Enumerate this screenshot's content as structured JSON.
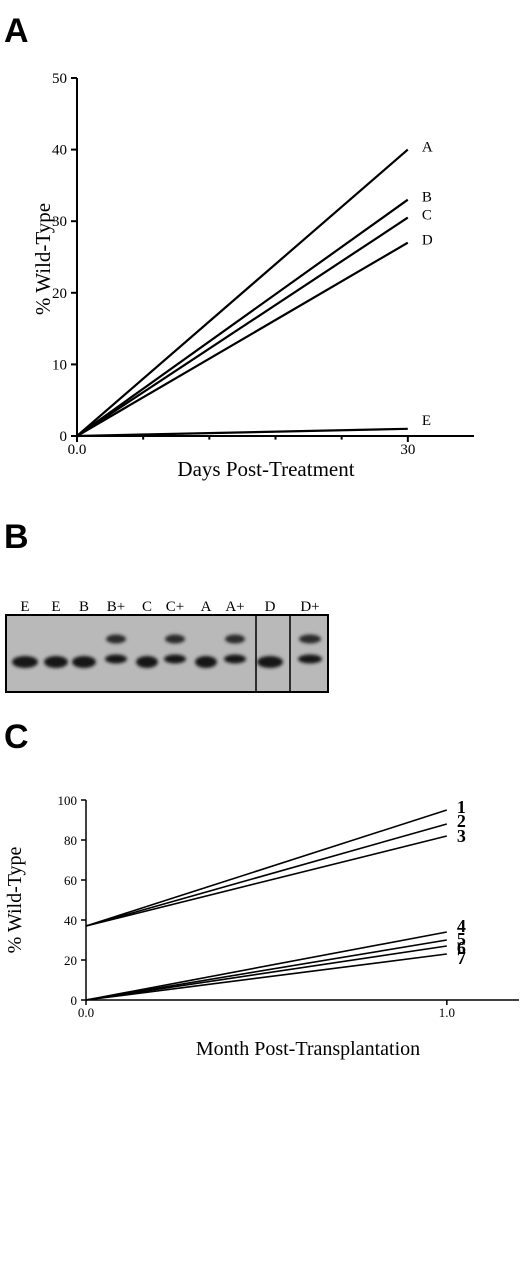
{
  "figure": {
    "panel_letters": [
      "A",
      "B",
      "C"
    ]
  },
  "chart_data": [
    {
      "panel": "A",
      "type": "line",
      "xlabel": "Days Post-Treatment",
      "ylabel": "% Wild-Type",
      "xlim": [
        0,
        36
      ],
      "ylim": [
        0,
        50
      ],
      "x_ticks": [
        0,
        30
      ],
      "x_tick_labels": [
        "0.0",
        "30"
      ],
      "y_ticks": [
        0,
        10,
        20,
        30,
        40,
        50
      ],
      "y_tick_labels": [
        "0",
        "10",
        "20",
        "30",
        "40",
        "50"
      ],
      "series": [
        {
          "name": "A",
          "x": [
            0,
            30
          ],
          "y": [
            0,
            40
          ]
        },
        {
          "name": "B",
          "x": [
            0,
            30
          ],
          "y": [
            0,
            33
          ]
        },
        {
          "name": "C",
          "x": [
            0,
            30
          ],
          "y": [
            0,
            30.5
          ]
        },
        {
          "name": "D",
          "x": [
            0,
            30
          ],
          "y": [
            0,
            27
          ]
        },
        {
          "name": "E",
          "x": [
            0,
            30
          ],
          "y": [
            0,
            1
          ]
        }
      ]
    },
    {
      "panel": "C",
      "type": "line",
      "xlabel": "Month Post-Transplantation",
      "ylabel": "% Wild-Type",
      "xlim": [
        0,
        1.2
      ],
      "ylim": [
        0,
        100
      ],
      "x_ticks": [
        0,
        1
      ],
      "x_tick_labels": [
        "0.0",
        "1.0"
      ],
      "y_ticks": [
        0,
        20,
        40,
        60,
        80,
        100
      ],
      "y_tick_labels": [
        "0",
        "20",
        "40",
        "60",
        "80",
        "100"
      ],
      "series": [
        {
          "name": "1",
          "x": [
            0,
            1
          ],
          "y": [
            37,
            95
          ]
        },
        {
          "name": "2",
          "x": [
            0,
            1
          ],
          "y": [
            37,
            88
          ]
        },
        {
          "name": "3",
          "x": [
            0,
            1
          ],
          "y": [
            37,
            82
          ]
        },
        {
          "name": "4",
          "x": [
            0,
            1
          ],
          "y": [
            0,
            34
          ]
        },
        {
          "name": "5",
          "x": [
            0,
            1
          ],
          "y": [
            0,
            30
          ]
        },
        {
          "name": "6",
          "x": [
            0,
            1
          ],
          "y": [
            0,
            27
          ]
        },
        {
          "name": "7",
          "x": [
            0,
            1
          ],
          "y": [
            0,
            23
          ]
        }
      ]
    }
  ],
  "gel": {
    "lane_labels": [
      "E",
      "E",
      "B",
      "B+",
      "C",
      "C+",
      "A",
      "A+",
      "D",
      "D+"
    ],
    "lanes_with_upper_band": [
      "B+",
      "C+",
      "A+",
      "D+"
    ]
  },
  "colors": {
    "ink": "#000000",
    "background": "#ffffff",
    "gel_background": "#b9b9b9",
    "band": "#151515"
  }
}
